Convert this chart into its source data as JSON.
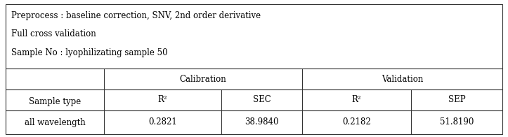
{
  "preprocess_line1": "Preprocess : baseline correction, SNV, 2nd order derivative",
  "preprocess_line2": "Full cross validation",
  "preprocess_line3": "Sample No : lyophilizating sample 50",
  "col_sample_type": "Sample type",
  "col_calibration": "Calibration",
  "col_validation": "Validation",
  "col_r2": "R²",
  "col_sec": "SEC",
  "col_r2_val": "R²",
  "col_sep": "SEP",
  "row_label": "all wavelength",
  "val_r2_cal": "0.2821",
  "val_sec": "38.9840",
  "val_r2_val": "0.2182",
  "val_sep": "51.8190",
  "border_color": "#333333",
  "bg_color": "#ffffff",
  "text_color": "#000000",
  "font_size": 8.5
}
